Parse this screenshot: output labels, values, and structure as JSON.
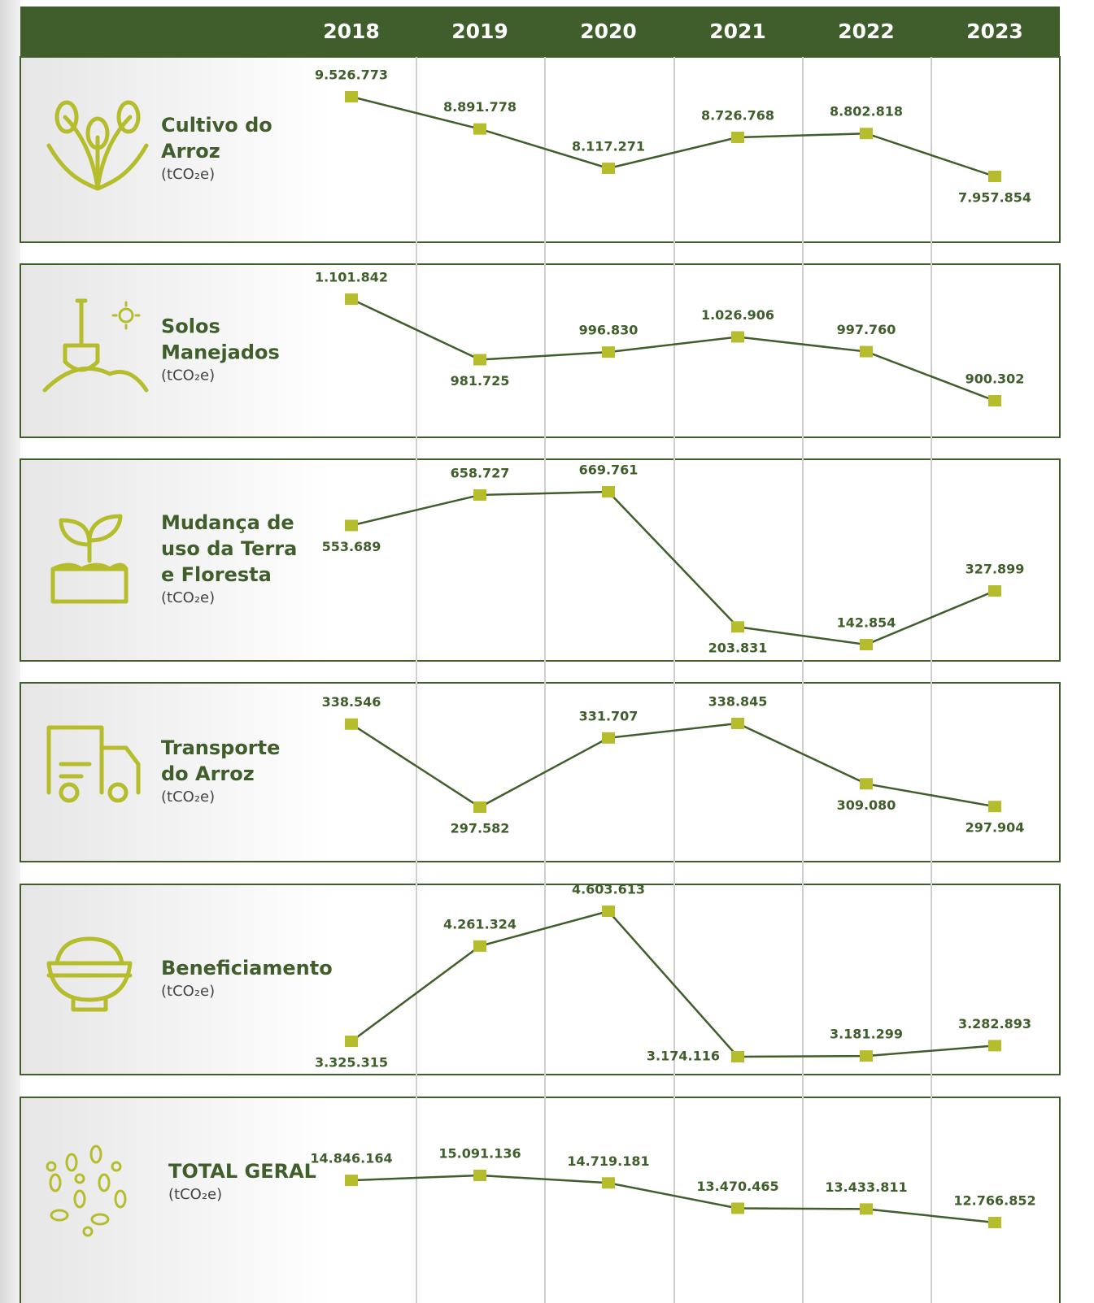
{
  "header": {
    "years": [
      "2018",
      "2019",
      "2020",
      "2021",
      "2022",
      "2023"
    ]
  },
  "chart_data": [
    {
      "type": "line",
      "title": [
        "Cultivo do",
        "Arroz"
      ],
      "unit": "(tCO₂e)",
      "values": [
        9526773,
        8891778,
        8117271,
        8726768,
        8802818,
        7957854
      ],
      "value_labels": [
        "9.526.773",
        "8.891.778",
        "8.117.271",
        "8.726.768",
        "8.802.818",
        "7.957.854"
      ],
      "color": "#3f5e2b",
      "marker_color": "#b5bd2c"
    },
    {
      "type": "line",
      "title": [
        "Solos",
        "Manejados"
      ],
      "unit": "(tCO₂e)",
      "values": [
        1101842,
        981725,
        996830,
        1026906,
        997760,
        900302
      ],
      "value_labels": [
        "1.101.842",
        "981.725",
        "996.830",
        "1.026.906",
        "997.760",
        "900.302"
      ],
      "color": "#3f5e2b",
      "marker_color": "#b5bd2c"
    },
    {
      "type": "line",
      "title": [
        "Mudança de",
        "uso da Terra",
        "e Floresta"
      ],
      "unit": "(tCO₂e)",
      "values": [
        553689,
        658727,
        669761,
        203831,
        142854,
        327899
      ],
      "value_labels": [
        "553.689",
        "658.727",
        "669.761",
        "203.831",
        "142.854",
        "327.899"
      ],
      "color": "#3f5e2b",
      "marker_color": "#b5bd2c"
    },
    {
      "type": "line",
      "title": [
        "Transporte",
        "do Arroz"
      ],
      "unit": "(tCO₂e)",
      "values": [
        338546,
        297582,
        331707,
        338845,
        309080,
        297904
      ],
      "value_labels": [
        "338.546",
        "297.582",
        "331.707",
        "338.845",
        "309.080",
        "297.904"
      ],
      "color": "#3f5e2b",
      "marker_color": "#b5bd2c"
    },
    {
      "type": "line",
      "title": [
        "Beneficiamento"
      ],
      "unit": "(tCO₂e)",
      "values": [
        3325315,
        4261324,
        4603613,
        3174116,
        3181299,
        3282893
      ],
      "value_labels": [
        "3.325.315",
        "4.261.324",
        "4.603.613",
        "3.174.116",
        "3.181.299",
        "3.282.893"
      ],
      "color": "#3f5e2b",
      "marker_color": "#b5bd2c"
    },
    {
      "type": "line",
      "title": [
        "TOTAL GERAL"
      ],
      "unit": "(tCO₂e)",
      "values": [
        14846164,
        15091136,
        14719181,
        13470465,
        13433811,
        12766852
      ],
      "value_labels": [
        "14.846.164",
        "15.091.136",
        "14.719.181",
        "13.470.465",
        "13.433.811",
        "12.766.852"
      ],
      "color": "#3f5e2b",
      "marker_color": "#b5bd2c"
    }
  ]
}
